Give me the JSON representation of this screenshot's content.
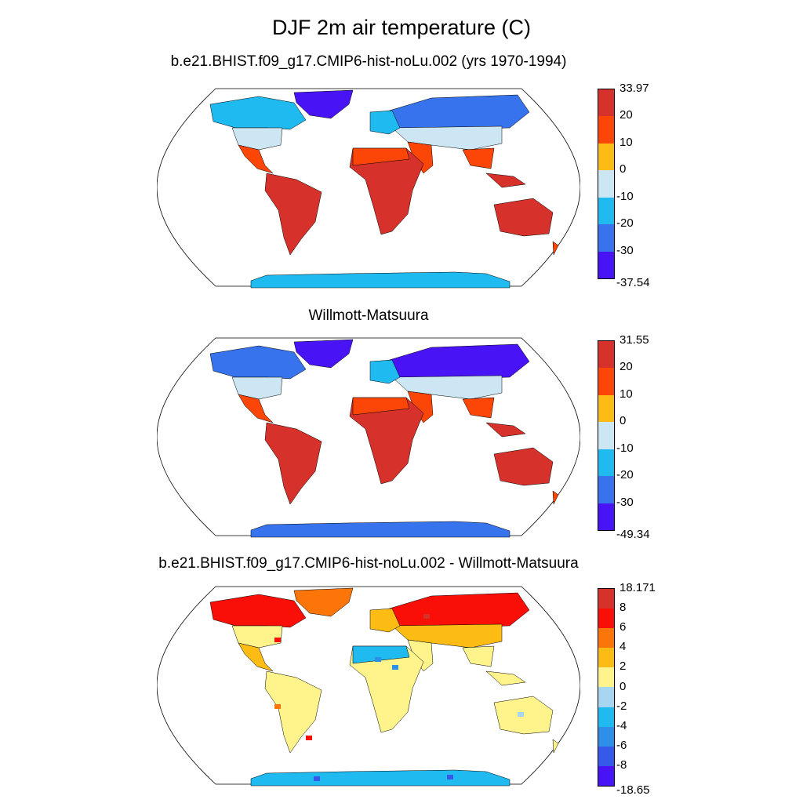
{
  "figure": {
    "title": "DJF 2m air temperature (C)",
    "panels": [
      {
        "id": "model",
        "title": "b.e21.BHIST.f09_g17.CMIP6-hist-noLu.002 (yrs 1970-1994)",
        "colorbar": {
          "labels": [
            "33.97",
            "20",
            "10",
            "0",
            "-10",
            "-20",
            "-30",
            "-37.54"
          ],
          "colors": [
            "#d6312a",
            "#fb4608",
            "#fdbc14",
            "#cde6f3",
            "#1fbaf0",
            "#3773ec",
            "#4914f5"
          ]
        }
      },
      {
        "id": "observed",
        "title": "Willmott-Matsuura",
        "colorbar": {
          "labels": [
            "31.55",
            "20",
            "10",
            "0",
            "-10",
            "-20",
            "-30",
            "-49.34"
          ],
          "colors": [
            "#d6312a",
            "#fb4608",
            "#fdbc14",
            "#cde6f3",
            "#1fbaf0",
            "#3773ec",
            "#4914f5"
          ]
        }
      },
      {
        "id": "difference",
        "title": "b.e21.BHIST.f09_g17.CMIP6-hist-noLu.002 - Willmott-Matsuura",
        "colorbar": {
          "labels": [
            "18.171",
            "8",
            "6",
            "4",
            "2",
            "0",
            "-2",
            "-4",
            "-6",
            "-8",
            "-18.65"
          ],
          "colors": [
            "#d6312a",
            "#fa0f08",
            "#fb7508",
            "#fdbc14",
            "#fff38b",
            "#a8d6f1",
            "#1fbaf0",
            "#2e8fe8",
            "#3559e8",
            "#4914f5"
          ]
        }
      }
    ]
  }
}
